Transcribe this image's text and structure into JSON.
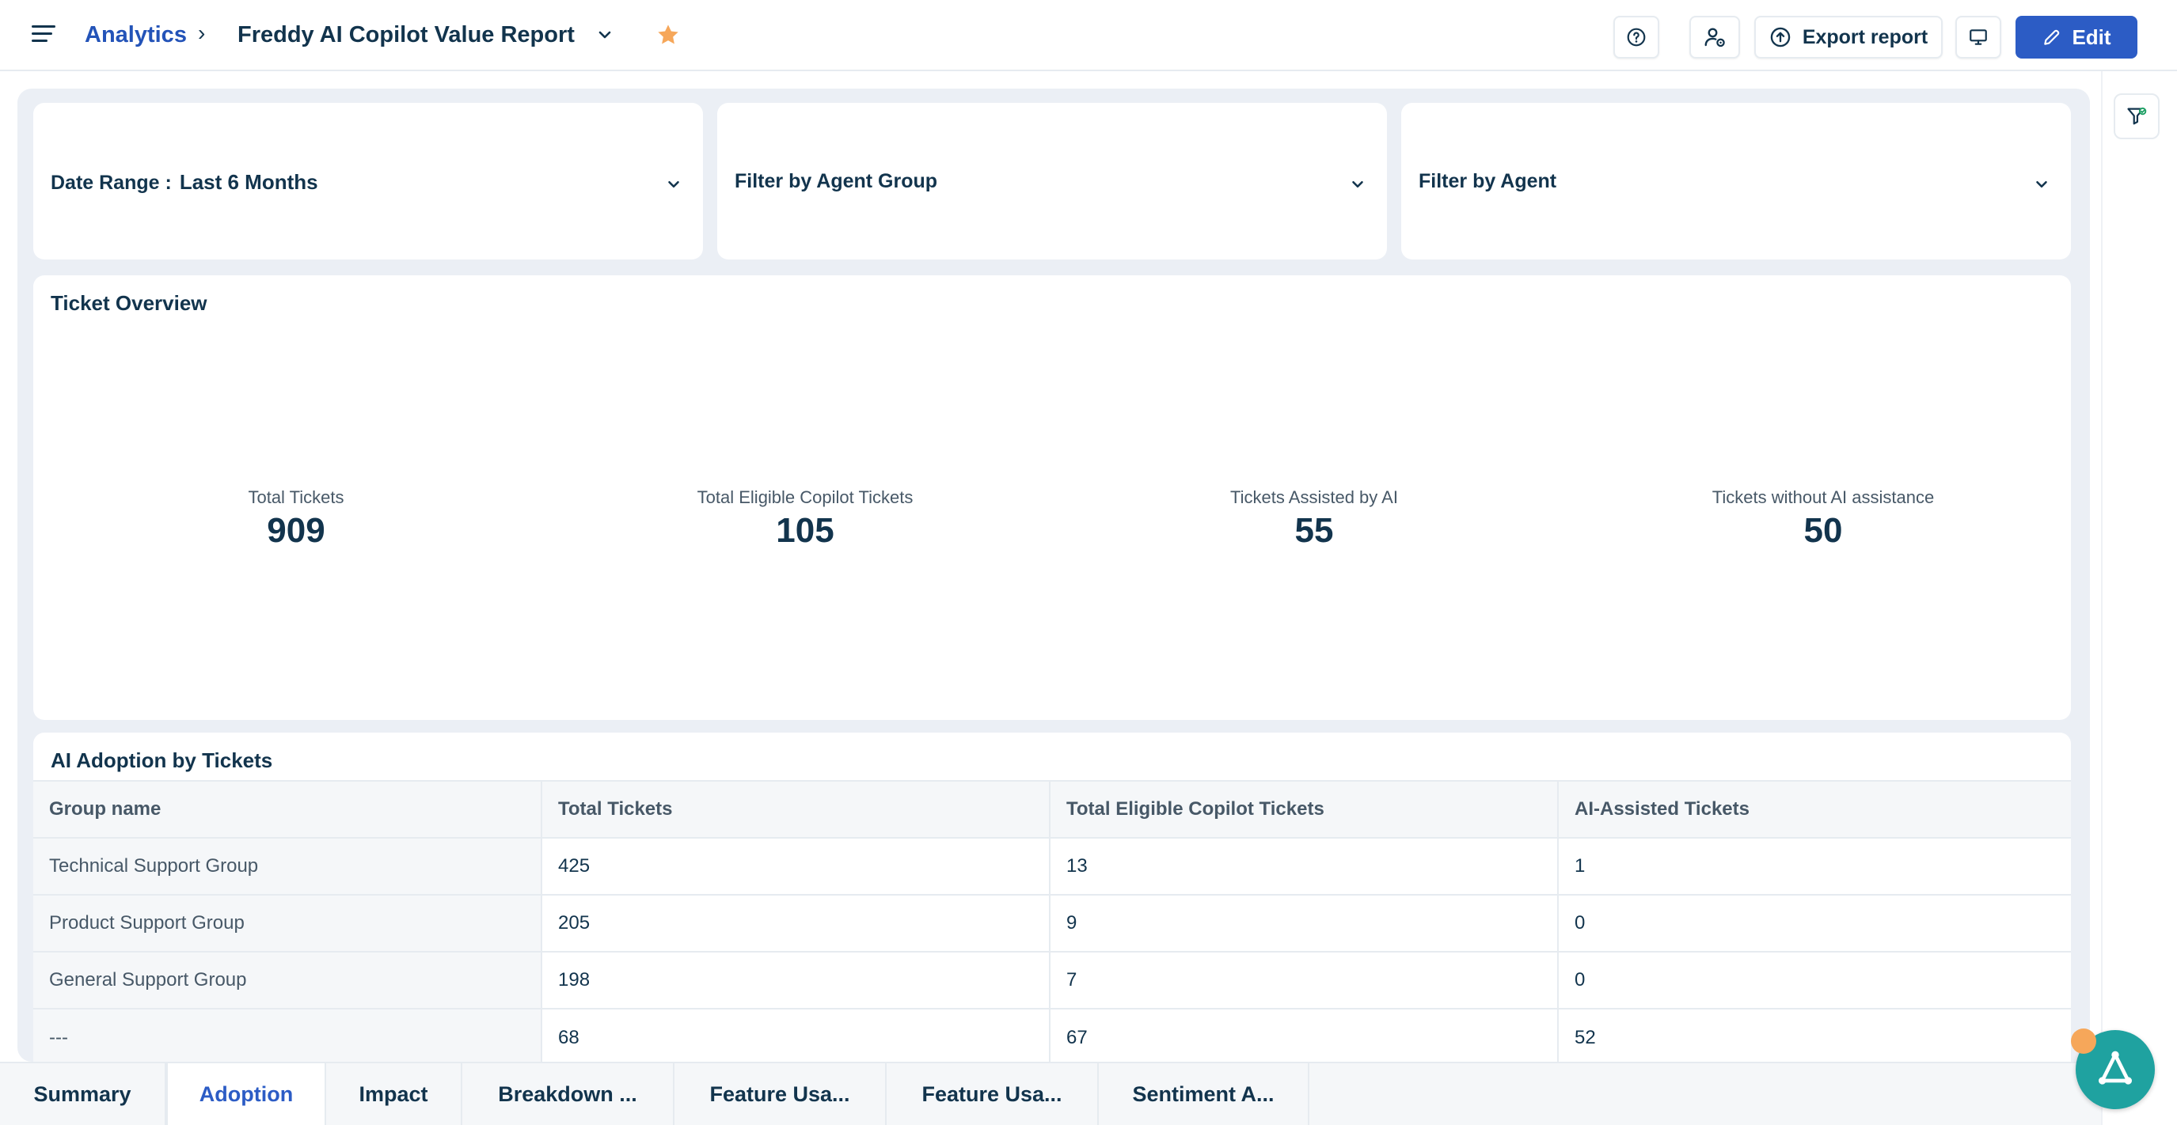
{
  "header": {
    "breadcrumb_link": "Analytics",
    "breadcrumb_sep": "›",
    "report_title": "Freddy AI Copilot Value Report",
    "export_label": "Export report",
    "edit_label": "Edit"
  },
  "filters": {
    "date_range_label": "Date Range :",
    "date_range_value": "Last 6 Months",
    "agent_group_label": "Filter by Agent Group",
    "agent_label": "Filter by Agent"
  },
  "ticket_overview": {
    "title": "Ticket Overview",
    "metrics": [
      {
        "label": "Total Tickets",
        "value": "909"
      },
      {
        "label": "Total Eligible Copilot Tickets",
        "value": "105"
      },
      {
        "label": "Tickets Assisted by AI",
        "value": "55"
      },
      {
        "label": "Tickets without AI assistance",
        "value": "50"
      }
    ]
  },
  "adoption": {
    "title": "AI Adoption by Tickets",
    "columns": [
      "Group name",
      "Total Tickets",
      "Total Eligible Copilot Tickets",
      "AI-Assisted Tickets"
    ],
    "rows": [
      [
        "Technical Support Group",
        "425",
        "13",
        "1"
      ],
      [
        "Product Support Group",
        "205",
        "9",
        "0"
      ],
      [
        "General Support Group",
        "198",
        "7",
        "0"
      ],
      [
        "---",
        "68",
        "67",
        "52"
      ]
    ]
  },
  "tabs": [
    "Summary",
    "Adoption",
    "Impact",
    "Breakdown ...",
    "Feature Usa...",
    "Feature Usa...",
    "Sentiment A..."
  ],
  "active_tab": "Adoption",
  "colors": {
    "accent": "#2c5cc5",
    "link": "#2353b8",
    "star": "#f6a75a",
    "bot": "#1fa2a0",
    "canvas": "#ebeff5"
  }
}
